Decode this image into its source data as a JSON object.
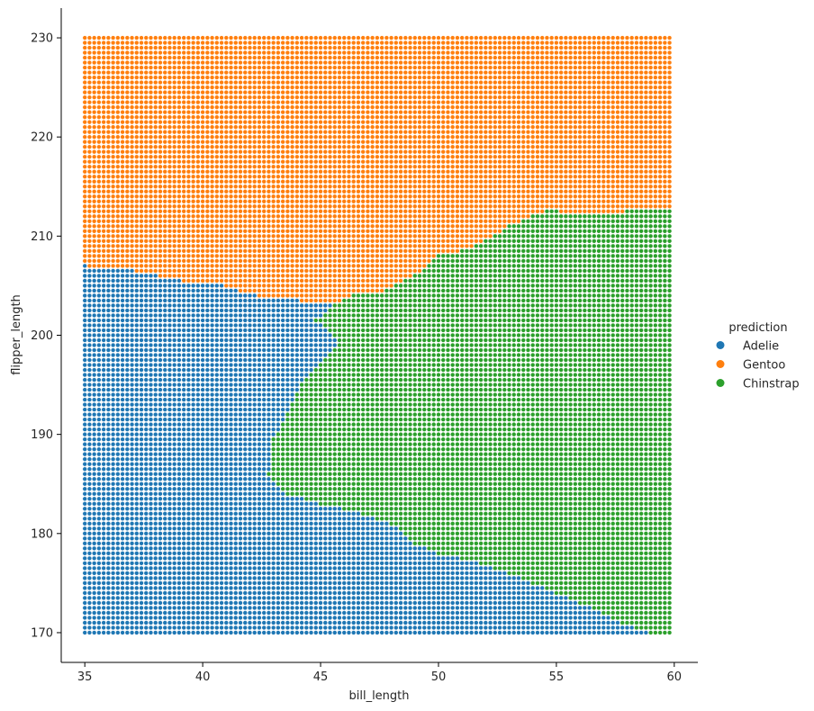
{
  "chart_data": {
    "type": "scatter",
    "title": "",
    "xlabel": "bill_length",
    "ylabel": "flipper_length",
    "xlim": [
      34.0,
      61.0
    ],
    "ylim": [
      167.0,
      233.0
    ],
    "xticks": [
      35,
      40,
      45,
      50,
      55,
      60
    ],
    "yticks": [
      170,
      180,
      190,
      200,
      210,
      220,
      230
    ],
    "grid": false,
    "legend_title": "prediction",
    "legend_position": "right",
    "grid_points": {
      "x_start": 35.0,
      "x_end": 59.8,
      "x_step": 0.2,
      "y_start": 170.0,
      "y_end": 230.0,
      "y_step": 0.5
    },
    "series": [
      {
        "name": "Adelie",
        "color": "#1f77b4"
      },
      {
        "name": "Gentoo",
        "color": "#ff7f0e"
      },
      {
        "name": "Chinstrap",
        "color": "#2ca02c"
      }
    ],
    "decision_boundaries": {
      "upper_boundary": [
        [
          35.0,
          207.0
        ],
        [
          37.0,
          206.5
        ],
        [
          39.0,
          205.5
        ],
        [
          40.5,
          205.2
        ],
        [
          42.3,
          204.0
        ],
        [
          44.0,
          203.5
        ],
        [
          45.5,
          203.0
        ],
        [
          46.5,
          204.2
        ],
        [
          47.5,
          204.3
        ],
        [
          49.0,
          206.0
        ],
        [
          50.0,
          208.0
        ],
        [
          51.0,
          208.6
        ],
        [
          52.0,
          209.5
        ],
        [
          53.0,
          211.0
        ],
        [
          54.0,
          212.0
        ],
        [
          54.5,
          212.5
        ],
        [
          55.0,
          212.5
        ],
        [
          56.0,
          212.0
        ],
        [
          57.0,
          212.0
        ],
        [
          58.0,
          212.5
        ],
        [
          59.8,
          212.7
        ]
      ],
      "adelie_chinstrap_boundary": [
        [
          45.5,
          203.0
        ],
        [
          44.8,
          201.5
        ],
        [
          45.8,
          199.5
        ],
        [
          45.0,
          197.0
        ],
        [
          44.3,
          195.5
        ],
        [
          43.8,
          193.0
        ],
        [
          43.5,
          191.5
        ],
        [
          43.0,
          189.5
        ],
        [
          43.0,
          187.5
        ],
        [
          42.8,
          186.0
        ],
        [
          43.5,
          184.0
        ],
        [
          45.0,
          183.0
        ],
        [
          46.0,
          182.5
        ],
        [
          48.0,
          181.0
        ],
        [
          49.0,
          179.0
        ],
        [
          50.0,
          178.0
        ],
        [
          51.0,
          177.5
        ],
        [
          53.0,
          176.0
        ],
        [
          55.0,
          174.0
        ],
        [
          57.0,
          172.0
        ],
        [
          58.0,
          170.7
        ],
        [
          59.0,
          170.0
        ]
      ]
    }
  }
}
